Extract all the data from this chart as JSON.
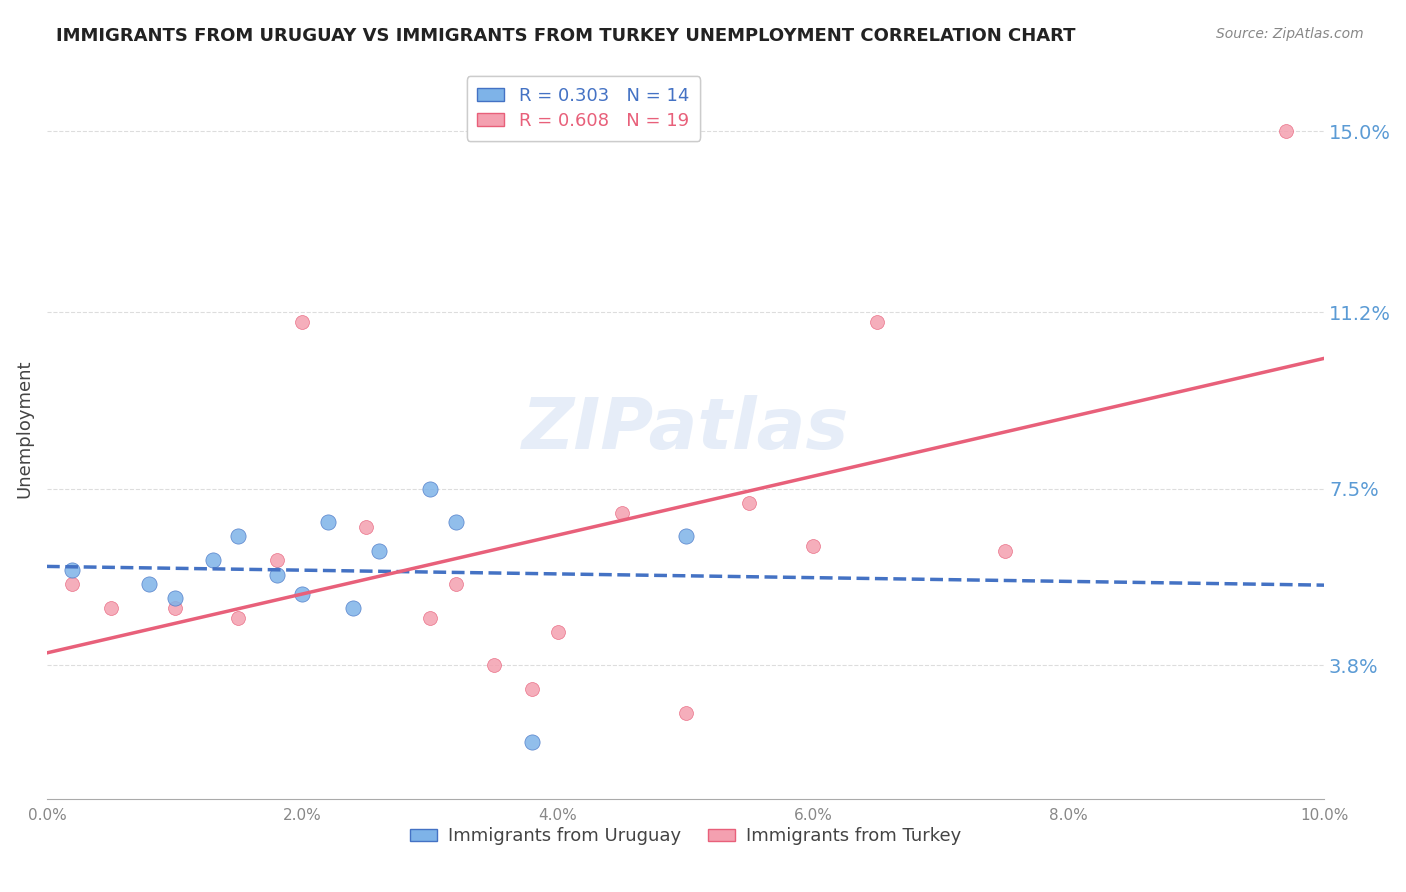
{
  "title": "IMMIGRANTS FROM URUGUAY VS IMMIGRANTS FROM TURKEY UNEMPLOYMENT CORRELATION CHART",
  "source": "Source: ZipAtlas.com",
  "ylabel": "Unemployment",
  "ytick_labels": [
    "3.8%",
    "7.5%",
    "11.2%",
    "15.0%"
  ],
  "ytick_values": [
    0.038,
    0.075,
    0.112,
    0.15
  ],
  "xlim": [
    0.0,
    0.1
  ],
  "ylim": [
    0.01,
    0.165
  ],
  "legend_R1": "R = 0.303",
  "legend_N1": "N = 14",
  "legend_R2": "R = 0.608",
  "legend_N2": "N = 19",
  "color_uruguay": "#7EB3E8",
  "color_turkey": "#F4A0B0",
  "color_line_uruguay": "#4472C4",
  "color_line_turkey": "#E8607A",
  "color_yticks": "#5B9BD5",
  "watermark": "ZIPatlas",
  "uruguay_x": [
    0.002,
    0.008,
    0.01,
    0.013,
    0.015,
    0.018,
    0.02,
    0.022,
    0.024,
    0.026,
    0.03,
    0.032,
    0.038,
    0.05
  ],
  "uruguay_y": [
    0.058,
    0.055,
    0.052,
    0.06,
    0.065,
    0.057,
    0.053,
    0.068,
    0.05,
    0.062,
    0.075,
    0.068,
    0.022,
    0.065
  ],
  "turkey_x": [
    0.002,
    0.005,
    0.01,
    0.015,
    0.018,
    0.02,
    0.025,
    0.03,
    0.032,
    0.035,
    0.038,
    0.04,
    0.045,
    0.05,
    0.055,
    0.06,
    0.065,
    0.075,
    0.097
  ],
  "turkey_y": [
    0.055,
    0.05,
    0.05,
    0.048,
    0.06,
    0.11,
    0.067,
    0.048,
    0.055,
    0.038,
    0.033,
    0.045,
    0.07,
    0.028,
    0.072,
    0.063,
    0.11,
    0.062,
    0.15
  ],
  "marker_size_uruguay": 120,
  "marker_size_turkey": 100,
  "grid_color": "#DDDDDD",
  "background_color": "#FFFFFF",
  "xtick_labels": [
    "0.0%",
    "2.0%",
    "4.0%",
    "6.0%",
    "8.0%",
    "10.0%"
  ],
  "xtick_values": [
    0.0,
    0.02,
    0.04,
    0.06,
    0.08,
    0.1
  ],
  "legend_bottom_1": "Immigrants from Uruguay",
  "legend_bottom_2": "Immigrants from Turkey"
}
